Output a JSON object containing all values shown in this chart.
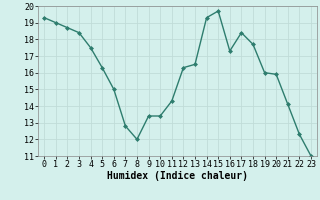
{
  "x": [
    0,
    1,
    2,
    3,
    4,
    5,
    6,
    7,
    8,
    9,
    10,
    11,
    12,
    13,
    14,
    15,
    16,
    17,
    18,
    19,
    20,
    21,
    22,
    23
  ],
  "y": [
    19.3,
    19.0,
    18.7,
    18.4,
    17.5,
    16.3,
    15.0,
    12.8,
    12.0,
    13.4,
    13.4,
    14.3,
    16.3,
    16.5,
    19.3,
    19.7,
    17.3,
    18.4,
    17.7,
    16.0,
    15.9,
    14.1,
    12.3,
    11.0
  ],
  "line_color": "#2e7d6e",
  "marker": "D",
  "marker_size": 2,
  "bg_color": "#d4f0ec",
  "grid_color": "#c0dcd8",
  "xlabel": "Humidex (Indice chaleur)",
  "ylim": [
    11,
    20
  ],
  "xlim": [
    -0.5,
    23.5
  ],
  "yticks": [
    11,
    12,
    13,
    14,
    15,
    16,
    17,
    18,
    19,
    20
  ],
  "xticks": [
    0,
    1,
    2,
    3,
    4,
    5,
    6,
    7,
    8,
    9,
    10,
    11,
    12,
    13,
    14,
    15,
    16,
    17,
    18,
    19,
    20,
    21,
    22,
    23
  ],
  "tick_font_size": 6,
  "xlabel_font_size": 7,
  "line_width": 1.0
}
